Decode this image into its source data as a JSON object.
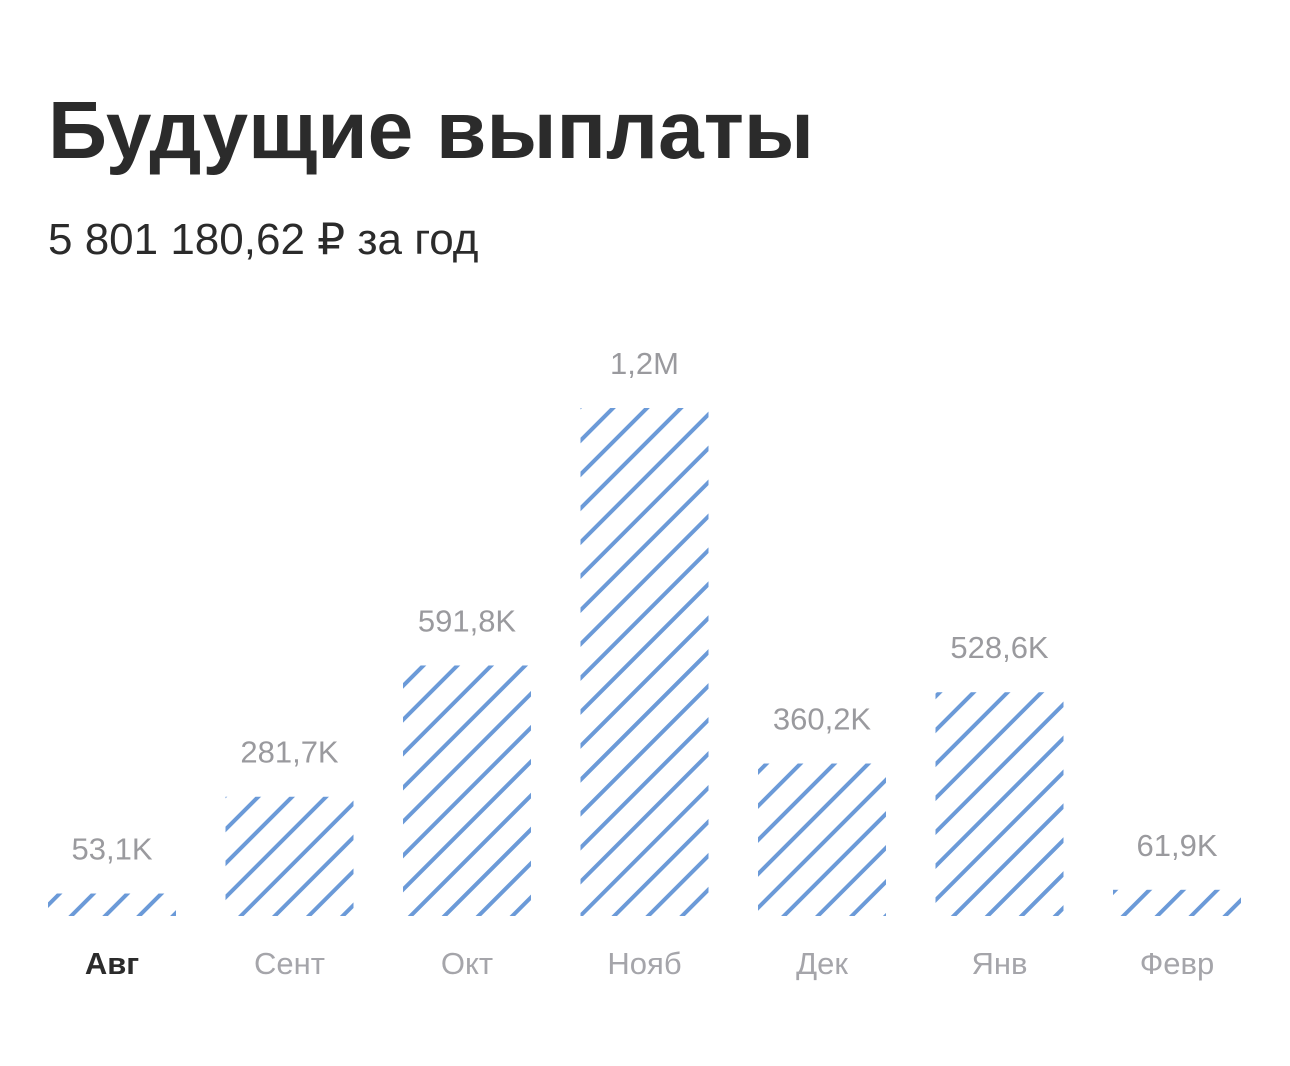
{
  "chart_data": {
    "type": "bar",
    "title": "Будущие выплаты",
    "subtitle": "5 801 180,62 ₽ за год",
    "categories": [
      "Авг",
      "Сент",
      "Окт",
      "Нояб",
      "Дек",
      "Янв",
      "Февр"
    ],
    "values": [
      53100,
      281700,
      591800,
      1200000,
      360200,
      528600,
      61900
    ],
    "value_labels": [
      "53,1K",
      "281,7K",
      "591,8K",
      "1,2M",
      "360,2K",
      "528,6K",
      "61,9K"
    ],
    "color": "#6b9ad8",
    "selected_index": 0
  }
}
